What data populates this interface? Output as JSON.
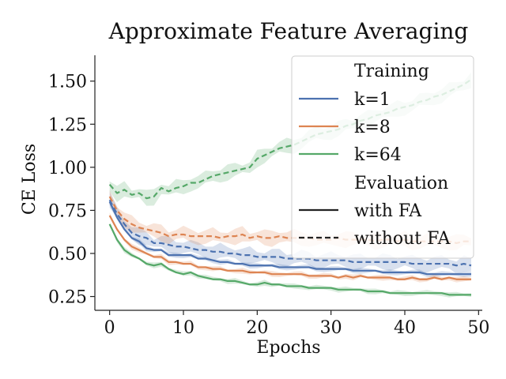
{
  "chart_data": {
    "type": "line",
    "title": "Approximate Feature Averaging",
    "xlabel": "Epochs",
    "ylabel": "CE Loss",
    "xlim": [
      -2,
      50.5
    ],
    "ylim": [
      0.17,
      1.65
    ],
    "xticks": [
      0,
      10,
      20,
      30,
      40,
      50
    ],
    "yticks": [
      0.25,
      0.5,
      0.75,
      1.0,
      1.25,
      1.5
    ],
    "ytick_labels": [
      "0.25",
      "0.50",
      "0.75",
      "1.00",
      "1.25",
      "1.50"
    ],
    "grid": false,
    "legend": {
      "position": "top-right",
      "training_header": "Training",
      "evaluation_header": "Evaluation",
      "training_entries": [
        "k=1",
        "k=8",
        "k=64"
      ],
      "evaluation_entries": [
        "with FA",
        "without FA"
      ]
    },
    "x": [
      0,
      1,
      2,
      3,
      4,
      5,
      6,
      7,
      8,
      9,
      10,
      11,
      12,
      13,
      14,
      15,
      16,
      17,
      18,
      19,
      20,
      21,
      22,
      23,
      24,
      25,
      26,
      27,
      28,
      29,
      30,
      31,
      32,
      33,
      34,
      35,
      36,
      37,
      38,
      39,
      40,
      41,
      42,
      43,
      44,
      45,
      46,
      47,
      48,
      49
    ],
    "series": [
      {
        "name": "k=1",
        "evaluation": "with FA",
        "color": "#4c72b0",
        "dash": "solid",
        "values": [
          0.8,
          0.71,
          0.64,
          0.59,
          0.57,
          0.53,
          0.52,
          0.52,
          0.49,
          0.49,
          0.49,
          0.49,
          0.47,
          0.47,
          0.46,
          0.45,
          0.45,
          0.44,
          0.44,
          0.43,
          0.43,
          0.43,
          0.43,
          0.42,
          0.42,
          0.42,
          0.42,
          0.42,
          0.41,
          0.41,
          0.41,
          0.41,
          0.41,
          0.4,
          0.4,
          0.4,
          0.4,
          0.39,
          0.39,
          0.39,
          0.39,
          0.39,
          0.39,
          0.38,
          0.38,
          0.38,
          0.38,
          0.38,
          0.38,
          0.38
        ]
      },
      {
        "name": "k=1",
        "evaluation": "without FA",
        "color": "#4c72b0",
        "dash": "dashed",
        "values": [
          0.81,
          0.73,
          0.67,
          0.62,
          0.6,
          0.59,
          0.56,
          0.56,
          0.55,
          0.54,
          0.54,
          0.53,
          0.52,
          0.52,
          0.51,
          0.51,
          0.5,
          0.5,
          0.49,
          0.49,
          0.48,
          0.48,
          0.48,
          0.48,
          0.47,
          0.47,
          0.47,
          0.47,
          0.46,
          0.46,
          0.46,
          0.46,
          0.46,
          0.45,
          0.45,
          0.45,
          0.45,
          0.45,
          0.45,
          0.45,
          0.45,
          0.44,
          0.44,
          0.44,
          0.44,
          0.44,
          0.44,
          0.43,
          0.44,
          0.43
        ]
      },
      {
        "name": "k=8",
        "evaluation": "with FA",
        "color": "#dd8452",
        "dash": "solid",
        "values": [
          0.72,
          0.64,
          0.58,
          0.54,
          0.52,
          0.5,
          0.48,
          0.48,
          0.45,
          0.45,
          0.44,
          0.44,
          0.42,
          0.42,
          0.41,
          0.41,
          0.4,
          0.4,
          0.4,
          0.39,
          0.39,
          0.39,
          0.38,
          0.38,
          0.38,
          0.38,
          0.38,
          0.37,
          0.37,
          0.37,
          0.37,
          0.36,
          0.37,
          0.36,
          0.37,
          0.36,
          0.36,
          0.36,
          0.36,
          0.35,
          0.35,
          0.36,
          0.35,
          0.35,
          0.36,
          0.35,
          0.36,
          0.35,
          0.35,
          0.35
        ]
      },
      {
        "name": "k=8",
        "evaluation": "without FA",
        "color": "#dd8452",
        "dash": "dashed",
        "values": [
          0.83,
          0.75,
          0.7,
          0.67,
          0.65,
          0.64,
          0.63,
          0.62,
          0.6,
          0.61,
          0.61,
          0.6,
          0.6,
          0.6,
          0.6,
          0.59,
          0.6,
          0.6,
          0.61,
          0.59,
          0.6,
          0.59,
          0.59,
          0.6,
          0.59,
          0.59,
          0.59,
          0.59,
          0.58,
          0.58,
          0.58,
          0.59,
          0.58,
          0.58,
          0.58,
          0.58,
          0.57,
          0.58,
          0.58,
          0.57,
          0.58,
          0.57,
          0.57,
          0.57,
          0.57,
          0.57,
          0.57,
          0.56,
          0.57,
          0.57
        ]
      },
      {
        "name": "k=64",
        "evaluation": "with FA",
        "color": "#55a868",
        "dash": "solid",
        "values": [
          0.67,
          0.58,
          0.52,
          0.49,
          0.47,
          0.44,
          0.43,
          0.44,
          0.41,
          0.39,
          0.38,
          0.39,
          0.37,
          0.36,
          0.35,
          0.35,
          0.34,
          0.34,
          0.33,
          0.32,
          0.32,
          0.33,
          0.32,
          0.32,
          0.31,
          0.31,
          0.31,
          0.3,
          0.3,
          0.3,
          0.3,
          0.29,
          0.29,
          0.29,
          0.29,
          0.28,
          0.28,
          0.28,
          0.27,
          0.27,
          0.27,
          0.27,
          0.27,
          0.27,
          0.27,
          0.27,
          0.26,
          0.26,
          0.26,
          0.26
        ]
      },
      {
        "name": "k=64",
        "evaluation": "without FA",
        "color": "#55a868",
        "dash": "dashed",
        "values": [
          0.9,
          0.85,
          0.87,
          0.84,
          0.85,
          0.82,
          0.83,
          0.88,
          0.86,
          0.88,
          0.89,
          0.91,
          0.91,
          0.93,
          0.95,
          0.96,
          0.97,
          0.98,
          0.99,
          1.0,
          1.05,
          1.07,
          1.09,
          1.11,
          1.12,
          1.13,
          1.15,
          1.17,
          1.19,
          1.2,
          1.21,
          1.22,
          1.24,
          1.25,
          1.27,
          1.28,
          1.3,
          1.31,
          1.32,
          1.34,
          1.35,
          1.36,
          1.38,
          1.39,
          1.41,
          1.42,
          1.44,
          1.46,
          1.48,
          1.51
        ]
      }
    ]
  }
}
